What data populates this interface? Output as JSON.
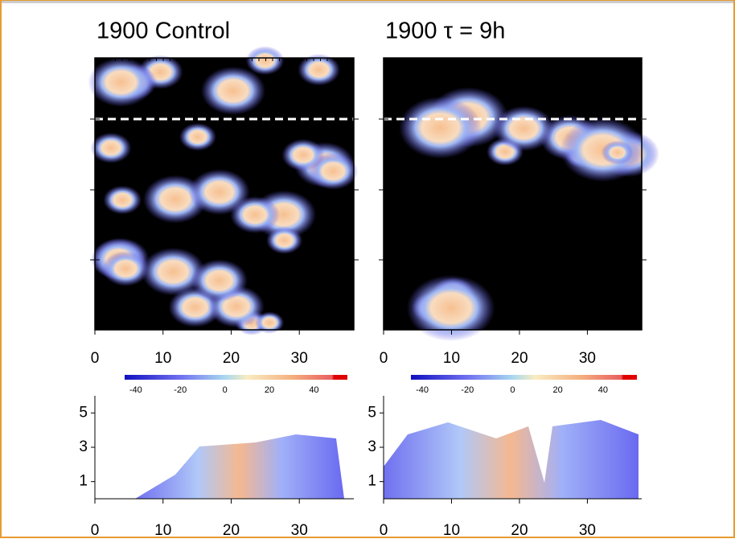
{
  "chart_data": [
    {
      "type": "heatmap",
      "title": "1900 Control",
      "xlim": [
        0,
        38
      ],
      "xticks": [
        0,
        10,
        20,
        30
      ],
      "ylim": [
        0,
        38
      ]
    },
    {
      "type": "heatmap",
      "title": "1900 τ = 9h",
      "xlim": [
        0,
        38
      ],
      "xticks": [
        0,
        10,
        20,
        30
      ],
      "ylim": [
        0,
        38
      ]
    },
    {
      "type": "colorbar",
      "clim": [
        -45,
        55
      ],
      "ticks": [
        -40,
        -20,
        0,
        20,
        40
      ]
    },
    {
      "type": "colorbar",
      "clim": [
        -45,
        55
      ],
      "ticks": [
        -40,
        -20,
        0,
        20,
        40
      ]
    },
    {
      "type": "heatmap",
      "xlim": [
        0,
        38
      ],
      "xticks": [
        0,
        10,
        20,
        30
      ],
      "ylim": [
        0,
        6
      ],
      "yticks": [
        1,
        3,
        5
      ]
    },
    {
      "type": "heatmap",
      "xlim": [
        0,
        38
      ],
      "xticks": [
        0,
        10,
        20,
        30
      ],
      "ylim": [
        0,
        6
      ],
      "yticks": [
        1,
        3,
        5
      ]
    }
  ]
}
